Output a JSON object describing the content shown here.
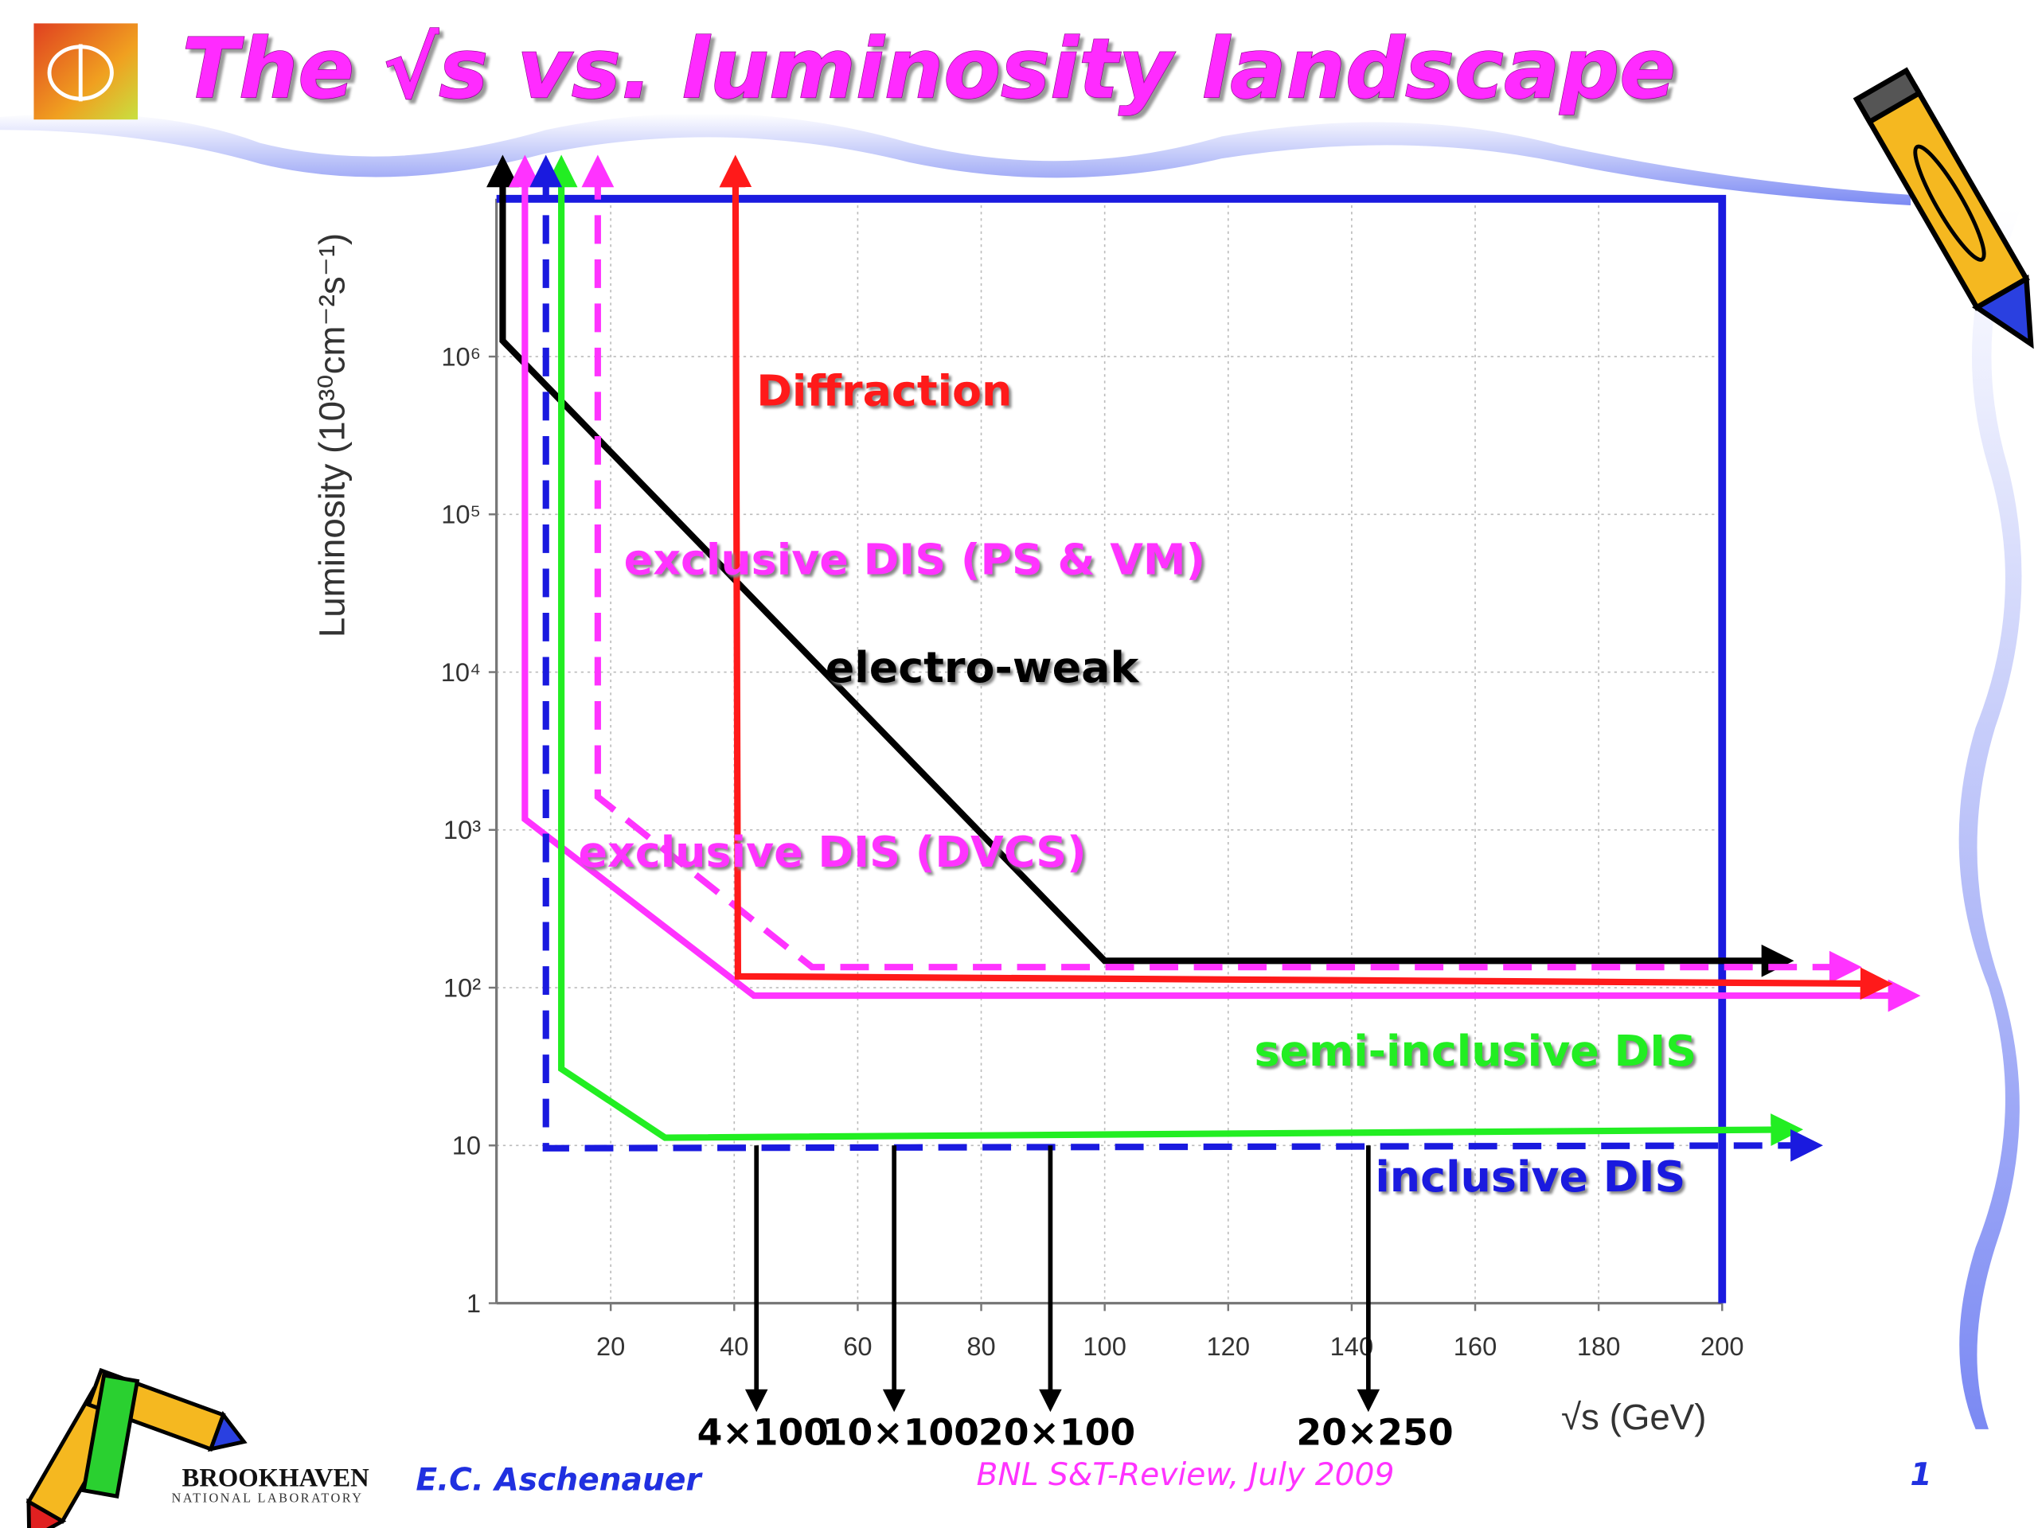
{
  "header": {
    "title": "The √s vs. luminosity landscape"
  },
  "chart_data": {
    "type": "line",
    "ylabel": "Luminosity (10³⁰cm⁻²s⁻¹)",
    "xlabel": "√s (GeV)",
    "log_y": true,
    "grid": true,
    "frame_color": "#1a1adf",
    "xlim": [
      1.5,
      200
    ],
    "ylim": [
      1,
      10000000
    ],
    "xticks": [
      20,
      40,
      60,
      80,
      100,
      120,
      140,
      160,
      180,
      200
    ],
    "yticks": [
      1,
      10,
      {
        "value": 100,
        "label": "10²"
      },
      {
        "value": 1000,
        "label": "10³"
      },
      {
        "value": 10000,
        "label": "10⁴"
      },
      {
        "value": 100000,
        "label": "10⁵"
      },
      {
        "value": 1000000,
        "label": "10⁶"
      }
    ],
    "series": [
      {
        "name": "electro-weak",
        "color": "#000000",
        "dashed": false,
        "x": [
          2.5,
          2.5,
          100,
          209
        ],
        "values": [
          15000000,
          1260000,
          148,
          148
        ]
      },
      {
        "name": "exclusive DIS (DVCS)",
        "color": "#ff33ff",
        "dashed": false,
        "x": [
          6.1,
          6.1,
          43.2,
          229.5
        ],
        "values": [
          15000000,
          1170,
          89,
          89
        ]
      },
      {
        "name": "exclusive DIS (PS & VM)",
        "color": "#ff33ff",
        "dashed": true,
        "x": [
          17.9,
          17.9,
          52.6,
          220
        ],
        "values": [
          15000000,
          1620,
          135,
          135
        ]
      },
      {
        "name": "Diffraction",
        "color": "#ff1a1a",
        "dashed": false,
        "x": [
          40.2,
          40.6,
          225
        ],
        "values": [
          15000000,
          118,
          106
        ]
      },
      {
        "name": "semi-inclusive DIS",
        "color": "#22ee22",
        "dashed": false,
        "x": [
          12,
          12,
          28.8,
          210.5
        ],
        "values": [
          15000000,
          30.6,
          11.2,
          12.6
        ]
      },
      {
        "name": "inclusive DIS",
        "color": "#1a1adf",
        "dashed": true,
        "x": [
          9.5,
          9.5,
          213.7
        ],
        "values": [
          15000000,
          9.6,
          10
        ]
      }
    ],
    "beam_configs": [
      {
        "label": "4×100",
        "x": 43.6,
        "y_from": 10
      },
      {
        "label": "10×100",
        "x": 65.9,
        "y_from": 10
      },
      {
        "label": "20×100",
        "x": 91.2,
        "y_from": 10
      },
      {
        "label": "20×250",
        "x": 142.7,
        "y_from": 10
      }
    ]
  },
  "footer": {
    "lab": "BROOKHAVEN",
    "lab_sub": "NATIONAL LABORATORY",
    "author": "E.C. Aschenauer",
    "event": "BNL S&T-Review, July 2009",
    "page": "1"
  }
}
